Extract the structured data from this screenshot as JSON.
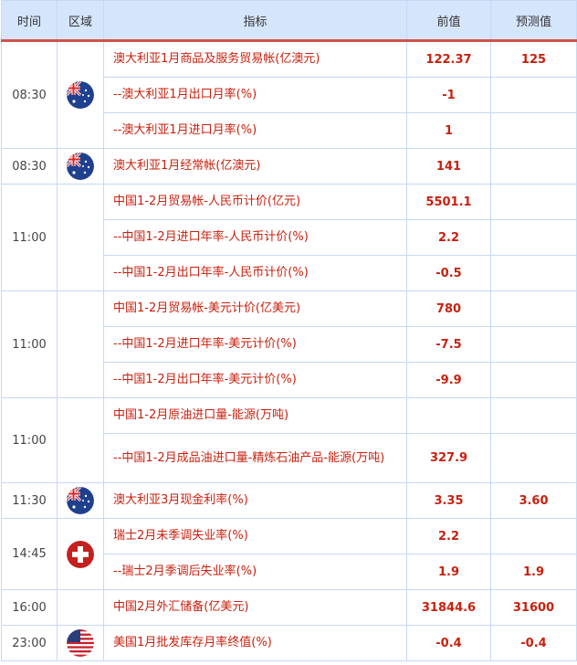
{
  "header": {
    "time": "时间",
    "region": "区域",
    "indicator": "指标",
    "previous": "前值",
    "forecast": "预测值"
  },
  "colors": {
    "text_red": "#c8200e",
    "header_bg": "#d5e5fb",
    "header_border": "#d0524a",
    "grid": "#c6d8f2"
  },
  "groups": [
    {
      "time": "08:30",
      "flag": "australia",
      "rows": [
        {
          "name": "澳大利亚1月商品及服务贸易帐(亿澳元)",
          "prev": "122.37",
          "fc": "125"
        },
        {
          "name": "--澳大利亚1月出口月率(%)",
          "prev": "-1",
          "fc": ""
        },
        {
          "name": "--澳大利亚1月进口月率(%)",
          "prev": "1",
          "fc": ""
        }
      ]
    },
    {
      "time": "08:30",
      "flag": "australia",
      "rows": [
        {
          "name": "澳大利亚1月经常帐(亿澳元)",
          "prev": "141",
          "fc": ""
        }
      ]
    },
    {
      "time": "11:00",
      "flag": "",
      "rows": [
        {
          "name": "中国1-2月贸易帐-人民币计价(亿元)",
          "prev": "5501.1",
          "fc": ""
        },
        {
          "name": "--中国1-2月进口年率-人民币计价(%)",
          "prev": "2.2",
          "fc": ""
        },
        {
          "name": "--中国1-2月出口年率-人民币计价(%)",
          "prev": "-0.5",
          "fc": ""
        }
      ]
    },
    {
      "time": "11:00",
      "flag": "",
      "rows": [
        {
          "name": "中国1-2月贸易帐-美元计价(亿美元)",
          "prev": "780",
          "fc": ""
        },
        {
          "name": "--中国1-2月进口年率-美元计价(%)",
          "prev": "-7.5",
          "fc": ""
        },
        {
          "name": "--中国1-2月出口年率-美元计价(%)",
          "prev": "-9.9",
          "fc": ""
        }
      ]
    },
    {
      "time": "11:00",
      "flag": "",
      "rows": [
        {
          "name": "中国1-2月原油进口量-能源(万吨)",
          "prev": "",
          "fc": ""
        },
        {
          "name": "--中国1-2月成品油进口量-精炼石油产品-能源(万吨)",
          "prev": "327.9",
          "fc": "",
          "tall": true
        }
      ]
    },
    {
      "time": "11:30",
      "flag": "australia",
      "rows": [
        {
          "name": "澳大利亚3月现金利率(%)",
          "prev": "3.35",
          "fc": "3.60"
        }
      ]
    },
    {
      "time": "14:45",
      "flag": "switzerland",
      "rows": [
        {
          "name": "瑞士2月未季调失业率(%)",
          "prev": "2.2",
          "fc": ""
        },
        {
          "name": "--瑞士2月季调后失业率(%)",
          "prev": "1.9",
          "fc": "1.9"
        }
      ]
    },
    {
      "time": "16:00",
      "flag": "",
      "rows": [
        {
          "name": "中国2月外汇储备(亿美元)",
          "prev": "31844.6",
          "fc": "31600"
        }
      ]
    },
    {
      "time": "23:00",
      "flag": "usa",
      "rows": [
        {
          "name": "美国1月批发库存月率终值(%)",
          "prev": "-0.4",
          "fc": "-0.4"
        }
      ]
    }
  ]
}
